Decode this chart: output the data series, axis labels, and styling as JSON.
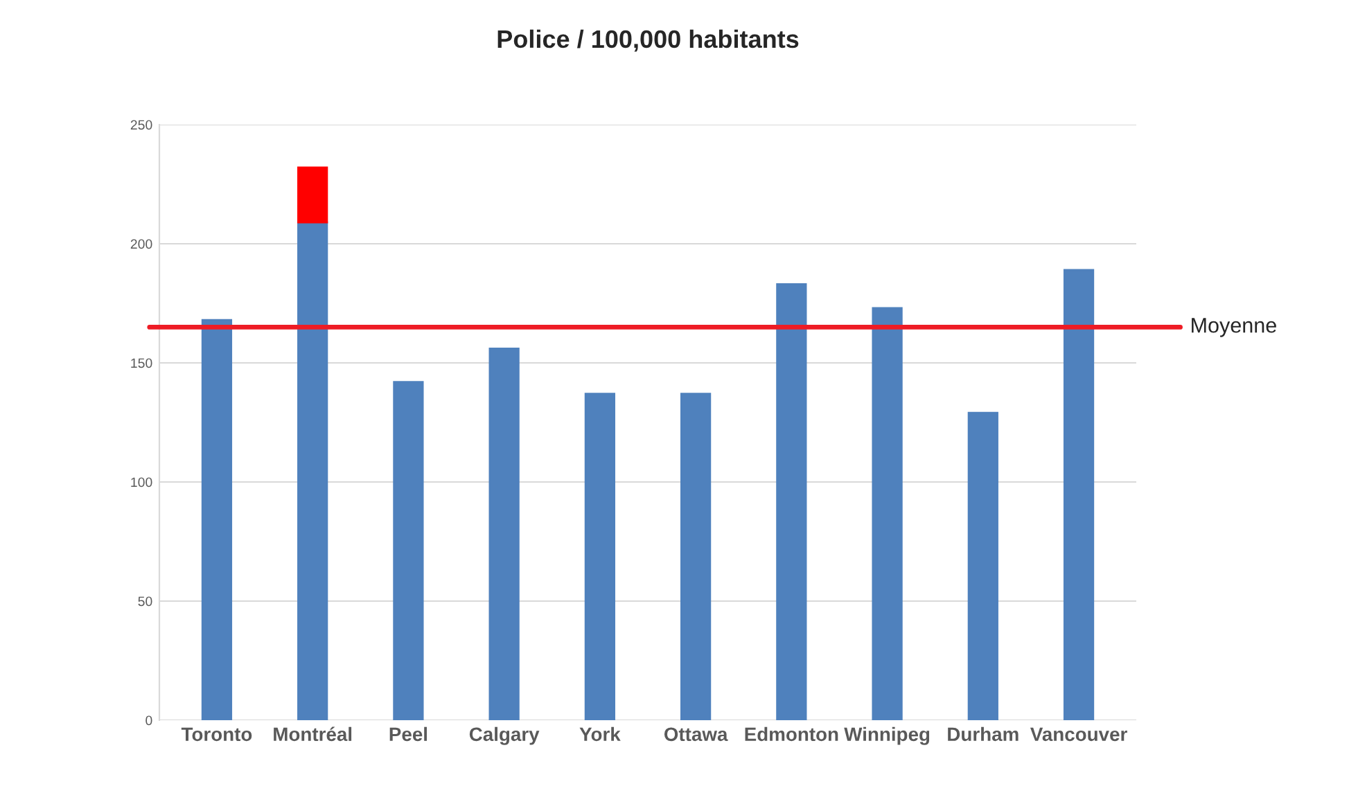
{
  "chart_data": {
    "type": "bar",
    "title": "Police / 100,000 habitants",
    "categories": [
      "Toronto",
      "Montréal",
      "Peel",
      "Calgary",
      "York",
      "Ottawa",
      "Edmonton",
      "Winnipeg",
      "Durham",
      "Vancouver"
    ],
    "stacked": true,
    "series": [
      {
        "color": "#4f81bd",
        "values": [
          168,
          209,
          142,
          156,
          137,
          137,
          183,
          173,
          129,
          189
        ]
      },
      {
        "color": "#ff0000",
        "values": [
          null,
          23,
          null,
          null,
          null,
          null,
          null,
          null,
          null,
          null
        ]
      }
    ],
    "ylim": [
      0,
      250
    ],
    "yticks": [
      0,
      50,
      100,
      150,
      200,
      250
    ],
    "grid": "y",
    "ref_lines": [
      {
        "axis": "y",
        "value": 165,
        "label": "Moyenne",
        "color": "#ee1c25"
      }
    ]
  }
}
